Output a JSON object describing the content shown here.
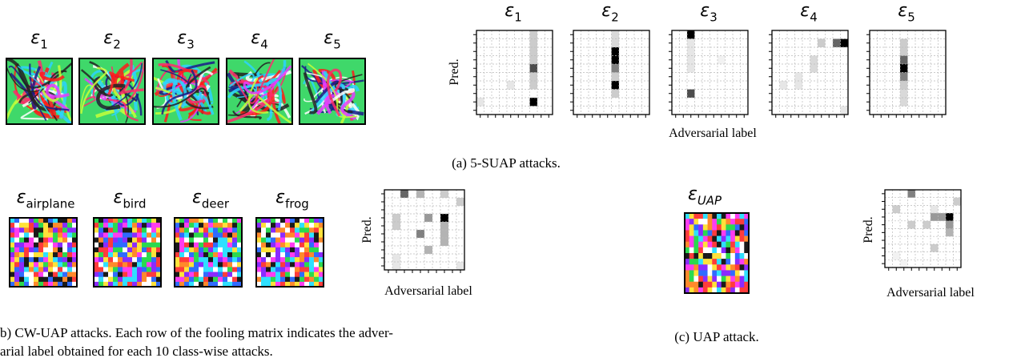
{
  "figure_a": {
    "perturbations": [
      {
        "symbol": "ε",
        "sub": "1"
      },
      {
        "symbol": "ε",
        "sub": "2"
      },
      {
        "symbol": "ε",
        "sub": "3"
      },
      {
        "symbol": "ε",
        "sub": "4"
      },
      {
        "symbol": "ε",
        "sub": "5"
      }
    ],
    "matrices": [
      {
        "symbol": "ε",
        "sub": "1",
        "cells": [
          [
            0,
            7,
            0.2
          ],
          [
            1,
            7,
            0.2
          ],
          [
            2,
            7,
            0.2
          ],
          [
            3,
            7,
            0.2
          ],
          [
            4,
            7,
            0.7
          ],
          [
            5,
            7,
            0.2
          ],
          [
            6,
            7,
            0.2
          ],
          [
            8,
            7,
            1
          ],
          [
            8,
            0,
            0.1
          ],
          [
            6,
            4,
            0.1
          ]
        ]
      },
      {
        "symbol": "ε",
        "sub": "2",
        "cells": [
          [
            0,
            5,
            0.15
          ],
          [
            1,
            5,
            0.15
          ],
          [
            2,
            5,
            1
          ],
          [
            3,
            5,
            1
          ],
          [
            4,
            5,
            0.5
          ],
          [
            5,
            5,
            0.2
          ],
          [
            6,
            5,
            1
          ],
          [
            7,
            5,
            0.2
          ]
        ]
      },
      {
        "symbol": "ε",
        "sub": "3",
        "cells": [
          [
            0,
            2,
            1
          ],
          [
            1,
            2,
            0.1
          ],
          [
            2,
            2,
            0.1
          ],
          [
            3,
            2,
            0.1
          ],
          [
            4,
            2,
            0.1
          ],
          [
            7,
            2,
            0.7
          ],
          [
            3,
            6,
            0.05
          ]
        ]
      },
      {
        "symbol": "ε",
        "sub": "4",
        "cells": [
          [
            1,
            9,
            1
          ],
          [
            1,
            8,
            0.6
          ],
          [
            1,
            6,
            0.2
          ],
          [
            3,
            5,
            0.15
          ],
          [
            4,
            5,
            0.15
          ],
          [
            5,
            3,
            0.1
          ],
          [
            6,
            3,
            0.1
          ],
          [
            6,
            1,
            0.1
          ],
          [
            9,
            9,
            0.1
          ]
        ]
      },
      {
        "symbol": "ε",
        "sub": "5",
        "cells": [
          [
            1,
            4,
            0.2
          ],
          [
            2,
            4,
            0.2
          ],
          [
            3,
            4,
            0.6
          ],
          [
            4,
            4,
            1
          ],
          [
            5,
            4,
            0.5
          ],
          [
            6,
            4,
            0.2
          ],
          [
            7,
            4,
            0.15
          ],
          [
            8,
            4,
            0.15
          ]
        ]
      }
    ],
    "y_label": "Pred.",
    "x_label": "Adversarial label",
    "caption": "(a) 5-SUAP attacks."
  },
  "figure_b": {
    "perturbations": [
      {
        "symbol": "ε",
        "sub": "airplane"
      },
      {
        "symbol": "ε",
        "sub": "bird"
      },
      {
        "symbol": "ε",
        "sub": "deer"
      },
      {
        "symbol": "ε",
        "sub": "frog"
      }
    ],
    "matrix": {
      "cells": [
        [
          0,
          2,
          0.6
        ],
        [
          0,
          4,
          0.3
        ],
        [
          0,
          7,
          0.2
        ],
        [
          1,
          9,
          0.2
        ],
        [
          3,
          1,
          0.2
        ],
        [
          3,
          5,
          0.4
        ],
        [
          3,
          7,
          1
        ],
        [
          4,
          1,
          0.2
        ],
        [
          4,
          7,
          0.3
        ],
        [
          5,
          4,
          0.5
        ],
        [
          5,
          7,
          0.3
        ],
        [
          6,
          7,
          0.3
        ],
        [
          7,
          5,
          0.3
        ],
        [
          8,
          1,
          0.1
        ],
        [
          9,
          1,
          0.1
        ],
        [
          9,
          9,
          0.1
        ]
      ]
    },
    "y_label": "Pred.",
    "x_label": "Adversarial label",
    "caption": [
      "b) CW-UAP attacks. Each row of the fooling matrix indicates the adver-",
      "arial label obtained for each 10 class-wise attacks."
    ]
  },
  "figure_c": {
    "perturbation": {
      "symbol": "ε",
      "sub": "UAP"
    },
    "matrix": {
      "cells": [
        [
          0,
          3,
          0.5
        ],
        [
          1,
          9,
          0.2
        ],
        [
          2,
          1,
          0.2
        ],
        [
          2,
          6,
          0.1
        ],
        [
          3,
          6,
          0.4
        ],
        [
          3,
          7,
          0.4
        ],
        [
          3,
          8,
          1
        ],
        [
          4,
          3,
          0.2
        ],
        [
          4,
          5,
          0.2
        ],
        [
          4,
          8,
          0.4
        ],
        [
          5,
          8,
          0.3
        ],
        [
          7,
          6,
          0.2
        ],
        [
          8,
          1,
          0.05
        ],
        [
          9,
          2,
          0.05
        ]
      ]
    },
    "y_label": "Pred.",
    "x_label": "Adversarial label",
    "caption": "(c) UAP attack."
  }
}
